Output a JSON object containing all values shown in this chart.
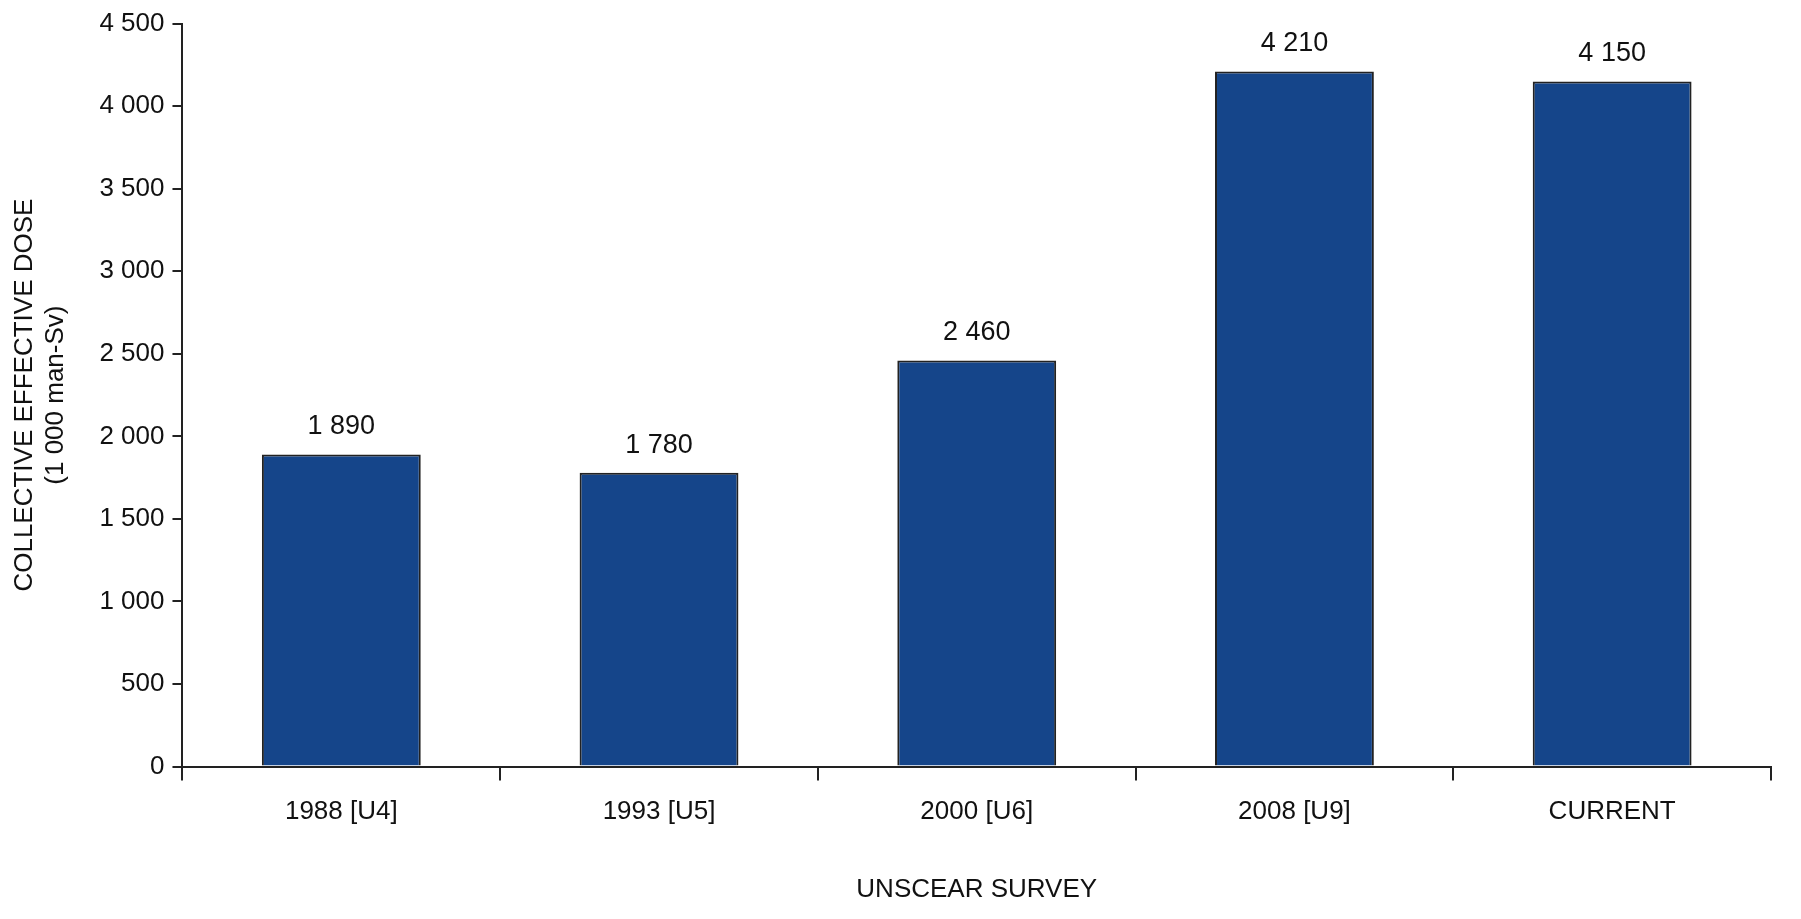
{
  "chart_data": {
    "type": "bar",
    "xlabel": "UNSCEAR SURVEY",
    "ylabel": "COLLECTIVE EFFECTIVE DOSE\n(1 000 man-Sv)",
    "categories": [
      "1988 [U4]",
      "1993 [U5]",
      "2000 [U6]",
      "2008 [U9]",
      "CURRENT"
    ],
    "values": [
      1890,
      1780,
      2460,
      4210,
      4150
    ],
    "color": "#15458a",
    "value_labels": [
      "1 890",
      "1 780",
      "2 460",
      "4 210",
      "4 150"
    ],
    "ylim": [
      0,
      4500
    ],
    "yticks": [
      0,
      500,
      {
        "value": 1000,
        "label": "1 000"
      },
      {
        "value": 1500,
        "label": "1 500"
      },
      {
        "value": 2000,
        "label": "2 000"
      },
      {
        "value": 2500,
        "label": "2 500"
      },
      {
        "value": 3000,
        "label": "3 000"
      },
      {
        "value": 3500,
        "label": "3 500"
      },
      {
        "value": 4000,
        "label": "4 000"
      },
      {
        "value": 4500,
        "label": "4 500"
      }
    ],
    "grid": false,
    "legend": false
  }
}
